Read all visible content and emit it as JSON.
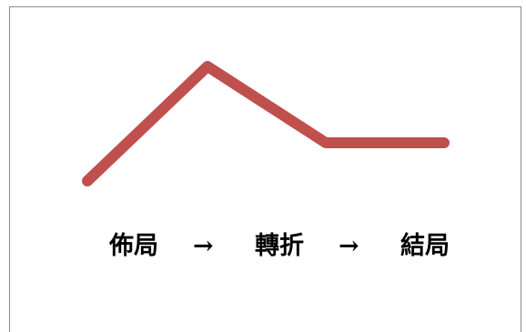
{
  "diagram": {
    "line_color": "#c0504d",
    "trend_levels": [
      0.25,
      1.0,
      0.5,
      0.5
    ],
    "stages": [
      "佈局",
      "轉折",
      "結局"
    ],
    "arrow_glyph": "→"
  }
}
